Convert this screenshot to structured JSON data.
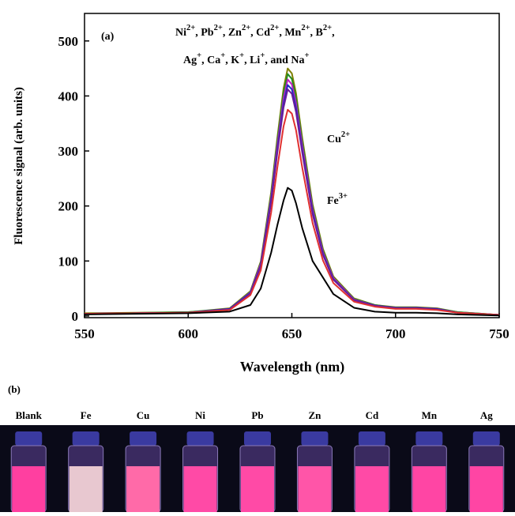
{
  "chart_data": {
    "type": "line",
    "panel_label": "(a)",
    "x_label": "Wavelength (nm)",
    "y_label": "Fluorescence signal (arb. units)",
    "x": [
      550,
      600,
      620,
      630,
      635,
      640,
      643,
      646,
      648,
      650,
      652,
      655,
      660,
      665,
      670,
      680,
      690,
      700,
      710,
      720,
      730,
      750
    ],
    "series": [
      {
        "color": "#7f7f00",
        "values": [
          5,
          7,
          14,
          45,
          99,
          225,
          324,
          414,
          450,
          441,
          405,
          324,
          203,
          122,
          72,
          32,
          20,
          16,
          16,
          14,
          7,
          2
        ]
      },
      {
        "color": "#228b22",
        "values": [
          4,
          7,
          13,
          44,
          97,
          220,
          317,
          405,
          440,
          431,
          396,
          317,
          198,
          119,
          70,
          31,
          20,
          15,
          15,
          13,
          7,
          2
        ]
      },
      {
        "color": "#c020c0",
        "values": [
          4,
          6,
          13,
          43,
          95,
          215,
          310,
          396,
          430,
          421,
          387,
          310,
          194,
          116,
          69,
          30,
          19,
          15,
          15,
          13,
          6,
          2
        ]
      },
      {
        "color": "#2030c0",
        "values": [
          4,
          6,
          13,
          42,
          92,
          210,
          302,
          386,
          420,
          412,
          378,
          302,
          189,
          113,
          67,
          29,
          19,
          15,
          15,
          13,
          6,
          2
        ]
      },
      {
        "color": "#6a1b9a",
        "values": [
          4,
          6,
          12,
          41,
          91,
          206,
          297,
          379,
          412,
          404,
          371,
          297,
          185,
          111,
          66,
          29,
          19,
          14,
          14,
          12,
          6,
          2
        ]
      },
      {
        "color": "#e03030",
        "values": [
          4,
          6,
          11,
          38,
          83,
          188,
          270,
          345,
          375,
          368,
          338,
          270,
          169,
          101,
          60,
          26,
          17,
          13,
          13,
          11,
          6,
          2
        ]
      },
      {
        "color": "#000000",
        "values": [
          3,
          5,
          8,
          20,
          50,
          115,
          165,
          210,
          233,
          228,
          205,
          160,
          100,
          70,
          40,
          15,
          8,
          6,
          6,
          5,
          3,
          1
        ]
      }
    ],
    "xlim": [
      550,
      750
    ],
    "xticks": [
      550,
      600,
      650,
      700,
      750
    ],
    "ylim": [
      -3,
      550
    ],
    "yticks": [
      0,
      100,
      200,
      300,
      400,
      500
    ],
    "ions_line1": [
      "Ni",
      "2+",
      ", Pb",
      "2+",
      ", Zn",
      "2+",
      ", Cd",
      "2+",
      ", Mn",
      "2+",
      ", B",
      "2+",
      ","
    ],
    "ions_line2": [
      "Ag",
      "+",
      ", Ca",
      "+",
      ", K",
      "+",
      ", Li",
      "+",
      ", and Na",
      "+"
    ],
    "cu_label": [
      "Cu",
      "2+"
    ],
    "fe_label": [
      "Fe",
      "3+"
    ]
  },
  "panel_b": {
    "label": "(b)",
    "vials": [
      {
        "label": "Blank",
        "color": "#ff3fa0"
      },
      {
        "label": "Fe",
        "color": "#e8c8d0"
      },
      {
        "label": "Cu",
        "color": "#ff6aa8"
      },
      {
        "label": "Ni",
        "color": "#ff4aa6"
      },
      {
        "label": "Pb",
        "color": "#ff4aa6"
      },
      {
        "label": "Zn",
        "color": "#ff55a8"
      },
      {
        "label": "Cd",
        "color": "#ff4aa6"
      },
      {
        "label": "Mn",
        "color": "#ff45a4"
      },
      {
        "label": "Ag",
        "color": "#ff45a4"
      }
    ]
  }
}
